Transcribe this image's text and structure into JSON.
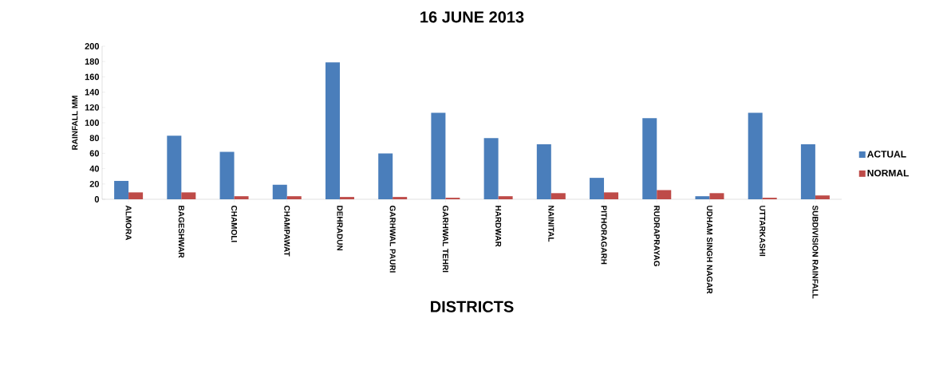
{
  "chart_data": {
    "type": "bar",
    "title": "16 JUNE 2013",
    "xlabel": "DISTRICTS",
    "ylabel": "RAINFALL MM",
    "categories": [
      "ALMORA",
      "BAGESHWAR",
      "CHAMOLI",
      "CHAMPAWAT",
      "DEHRADUN",
      "GARHWAL PAURI",
      "GARHWAL TEHRI",
      "HARDWAR",
      "NAINITAL",
      "PITHORAGARH",
      "RUDRAPRAYAG",
      "UDHAM SINGH NAGAR",
      "UTTARKASHI",
      "SUBDIVISION RAINFALL"
    ],
    "series": [
      {
        "name": "ACTUAL",
        "color": "#4a7ebb",
        "values": [
          24,
          83,
          62,
          19,
          179,
          60,
          113,
          80,
          72,
          28,
          106,
          4,
          113,
          72
        ]
      },
      {
        "name": "NORMAL",
        "color": "#be4b48",
        "values": [
          9,
          9,
          4,
          4,
          3,
          3,
          2,
          4,
          8,
          9,
          12,
          8,
          2,
          5
        ]
      }
    ],
    "ylim": [
      0,
      200
    ],
    "yticks": [
      0,
      20,
      40,
      60,
      80,
      100,
      120,
      140,
      160,
      180,
      200
    ],
    "grid": false,
    "legend": "right"
  }
}
